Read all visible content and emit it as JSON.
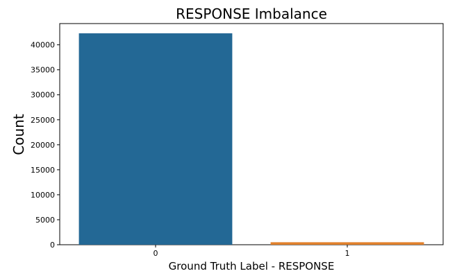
{
  "chart_data": {
    "type": "bar",
    "title": "RESPONSE Imbalance",
    "xlabel": "Ground Truth Label - RESPONSE",
    "ylabel": "Count",
    "categories": [
      "0",
      "1"
    ],
    "values": [
      42300,
      500
    ],
    "colors": [
      "#236895",
      "#e1812c"
    ],
    "ylim": [
      0,
      44250
    ],
    "yticks": [
      0,
      5000,
      10000,
      15000,
      20000,
      25000,
      30000,
      35000,
      40000
    ],
    "grid": false,
    "legend": "none"
  }
}
